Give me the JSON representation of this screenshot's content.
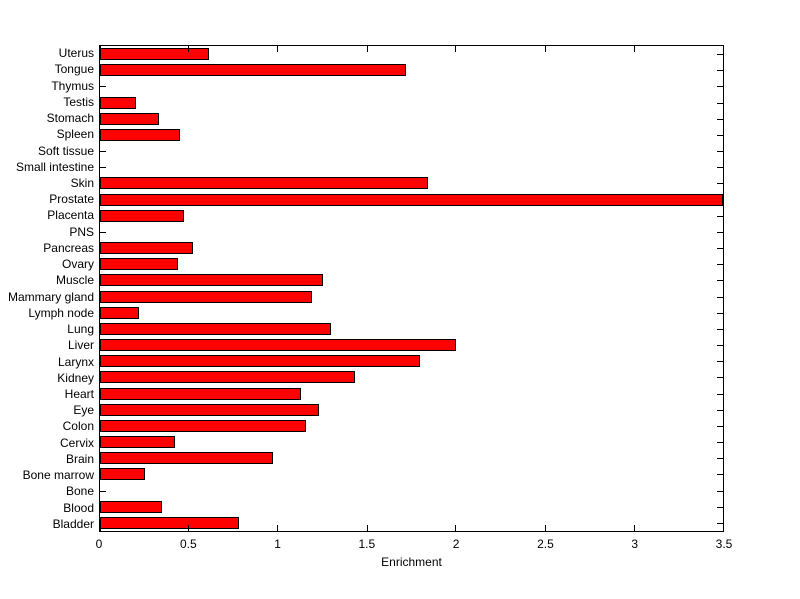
{
  "figure": {
    "background": "#ffffff",
    "axis_color": "#000000",
    "text_color": "#000000"
  },
  "chart_data": {
    "type": "bar",
    "orientation": "horizontal",
    "title": "",
    "xlabel": "Enrichment",
    "ylabel": "",
    "xlim": [
      0,
      3.5
    ],
    "grid": false,
    "legend": null,
    "bar_fill_color": "#ff0000",
    "bar_edge_color": "#000000",
    "x_ticks": [
      0,
      0.5,
      1,
      1.5,
      2,
      2.5,
      3,
      3.5
    ],
    "x_tick_labels": [
      "0",
      "0.5",
      "1",
      "1.5",
      "2",
      "2.5",
      "3",
      "3.5"
    ],
    "categories": [
      "Uterus",
      "Tongue",
      "Thymus",
      "Testis",
      "Stomach",
      "Spleen",
      "Soft tissue",
      "Small intestine",
      "Skin",
      "Prostate",
      "Placenta",
      "PNS",
      "Pancreas",
      "Ovary",
      "Muscle",
      "Mammary gland",
      "Lymph node",
      "Lung",
      "Liver",
      "Larynx",
      "Kidney",
      "Heart",
      "Eye",
      "Colon",
      "Cervix",
      "Brain",
      "Bone marrow",
      "Bone",
      "Blood",
      "Bladder"
    ],
    "values": [
      0.61,
      1.72,
      0,
      0.2,
      0.33,
      0.45,
      0,
      0,
      1.84,
      3.5,
      0.47,
      0,
      0.52,
      0.44,
      1.25,
      1.19,
      0.22,
      1.3,
      2.0,
      1.8,
      1.43,
      1.13,
      1.23,
      1.16,
      0.42,
      0.97,
      0.25,
      0,
      0.35,
      0.78
    ]
  }
}
